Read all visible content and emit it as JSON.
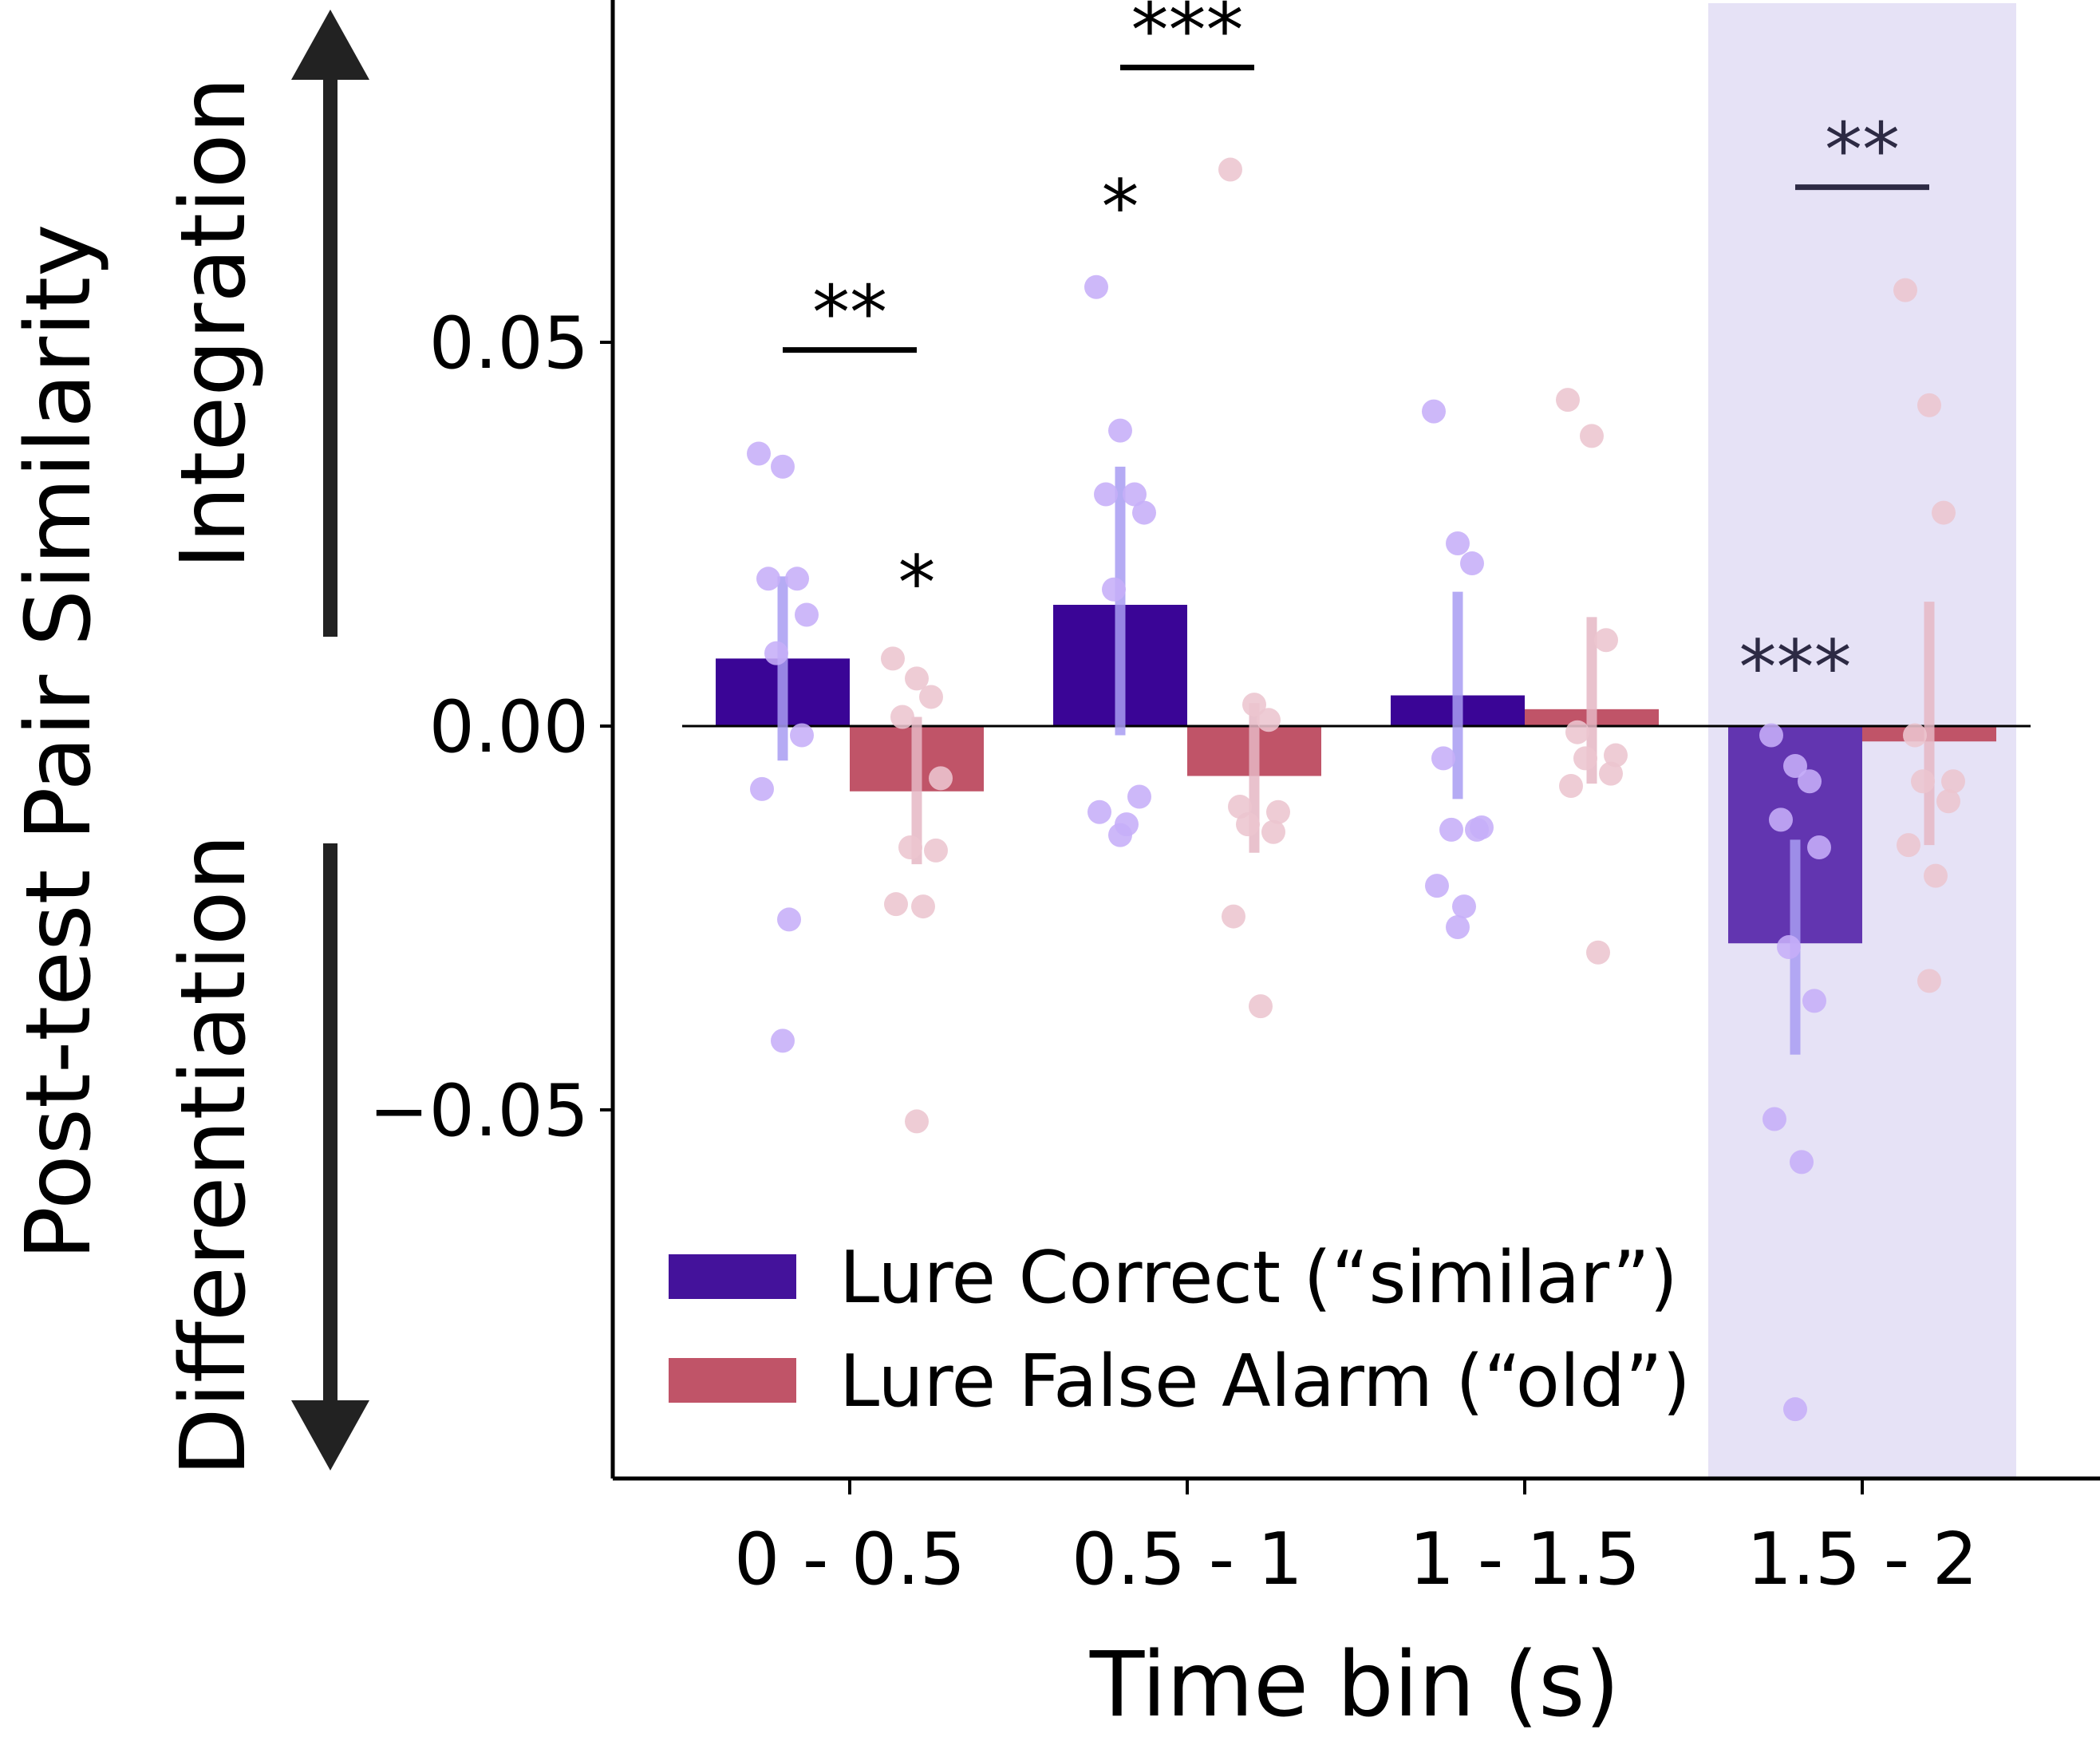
{
  "chart_data": {
    "type": "bar",
    "xlabel": "Time bin (s)",
    "ylabel": "Post-test Pair Similarity",
    "ylim": [
      -0.097,
      0.095
    ],
    "yticks": [
      {
        "value": 0.05,
        "label": "0.05"
      },
      {
        "value": 0.0,
        "label": "0.00"
      },
      {
        "value": -0.05,
        "label": "−0.05"
      }
    ],
    "categories": [
      "0 - 0.5",
      "0.5 - 1",
      "1 - 1.5",
      "1.5 - 2"
    ],
    "highlighted_category": 3,
    "series": [
      {
        "name": "Lure Correct (“similar”)",
        "color": "#3a0596",
        "highlight_color": "#6235b0",
        "errorbar_color": "#a89cf2",
        "point_color": "#c6aef8",
        "values": [
          0.0088,
          0.0158,
          0.004,
          -0.0283
        ],
        "ci": [
          [
            -0.0045,
            0.0195
          ],
          [
            -0.0012,
            0.0338
          ],
          [
            -0.0095,
            0.0175
          ],
          [
            -0.0428,
            -0.0148
          ]
        ],
        "points": [
          [
            0.0355,
            0.0338,
            0.0192,
            0.0192,
            0.0145,
            0.0095,
            -0.0012,
            -0.0082,
            -0.0252,
            -0.041
          ],
          [
            0.0572,
            0.0385,
            0.0302,
            0.0302,
            0.0278,
            0.0178,
            -0.0092,
            -0.0112,
            -0.0128,
            -0.0142
          ],
          [
            0.041,
            0.0238,
            0.0212,
            -0.0042,
            -0.0132,
            -0.0135,
            -0.0135,
            -0.0208,
            -0.0235,
            -0.0262
          ],
          [
            -0.0012,
            -0.0052,
            -0.0072,
            -0.0122,
            -0.0158,
            -0.0288,
            -0.0358,
            -0.0512,
            -0.0568,
            -0.089
          ]
        ]
      },
      {
        "name": "Lure False Alarm (“old”)",
        "color": "#c05468",
        "highlight_color": "#c05468",
        "errorbar_color": "#e5b7c4",
        "point_color": "#ecc5cf",
        "values": [
          -0.0085,
          -0.0065,
          0.0022,
          -0.002
        ],
        "ci": [
          [
            -0.018,
            0.0012
          ],
          [
            -0.0165,
            0.003
          ],
          [
            -0.0075,
            0.0142
          ],
          [
            -0.0155,
            0.0162
          ]
        ],
        "points": [
          [
            0.0088,
            0.0062,
            0.0038,
            0.0012,
            -0.0068,
            -0.0158,
            -0.0162,
            -0.0232,
            -0.0235,
            -0.0515
          ],
          [
            0.0725,
            0.0028,
            0.0008,
            -0.0105,
            -0.0112,
            -0.0128,
            -0.0138,
            -0.0248,
            -0.0365
          ],
          [
            0.0425,
            0.0378,
            0.0112,
            -0.0008,
            -0.0038,
            -0.0042,
            -0.0062,
            -0.0078,
            -0.0295
          ],
          [
            0.0568,
            0.0418,
            0.0278,
            -0.0012,
            -0.0072,
            -0.0072,
            -0.0098,
            -0.0155,
            -0.0195,
            -0.0332
          ]
        ]
      }
    ],
    "annotations": [
      {
        "text": "**",
        "type": "bracket",
        "category": 0,
        "y": 0.049
      },
      {
        "text": "*",
        "type": "marker",
        "category": 0,
        "series": 1,
        "y": 0.0215
      },
      {
        "text": "***",
        "type": "bracket",
        "category": 1,
        "y": 0.0858
      },
      {
        "text": "*",
        "type": "marker",
        "category": 1,
        "series": 0,
        "y": 0.0705
      },
      {
        "text": "**",
        "type": "bracket",
        "category": 3,
        "y": 0.0702
      },
      {
        "text": "***",
        "type": "marker",
        "category": 3,
        "series": 0,
        "y": 0.0105
      }
    ],
    "side_arrows": {
      "up_label": "Integration",
      "down_label": "Differentiation"
    },
    "legend_position": "lower-left"
  }
}
